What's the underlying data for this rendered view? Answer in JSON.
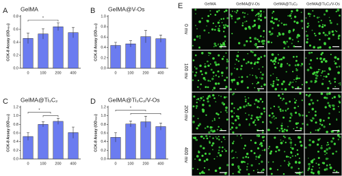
{
  "chart_data": [
    {
      "type": "bar",
      "panel": "A",
      "title": "GelMA",
      "y_label": "CCK-8 Assay (OD₄₅₀)",
      "categories": [
        "0",
        "100",
        "200",
        "400"
      ],
      "values": [
        0.46,
        0.53,
        0.64,
        0.55
      ],
      "errors": [
        0.08,
        0.08,
        0.06,
        0.08
      ],
      "color": "#6b7cf0",
      "ylim": [
        0,
        0.8
      ],
      "yticks": [
        {
          "value": 0,
          "label": "0.0"
        },
        {
          "value": 0.2,
          "label": "0.2"
        },
        {
          "value": 0.4,
          "label": "0.4"
        },
        {
          "value": 0.6,
          "label": "0.6"
        },
        {
          "value": 0.8,
          "label": "0.8"
        }
      ],
      "annotations": [
        "*"
      ]
    },
    {
      "type": "bar",
      "panel": "B",
      "title": "GelMA@V-Os",
      "y_label": "CCK-8 Assay (OD₄₅₀)",
      "categories": [
        "0",
        "100",
        "200",
        "400"
      ],
      "values": [
        0.44,
        0.47,
        0.61,
        0.57
      ],
      "errors": [
        0.06,
        0.06,
        0.12,
        0.07
      ],
      "color": "#6b7cf0",
      "ylim": [
        0,
        1.0
      ],
      "yticks": [
        {
          "value": 0,
          "label": "0.0"
        },
        {
          "value": 0.2,
          "label": "0.2"
        },
        {
          "value": 0.4,
          "label": "0.4"
        },
        {
          "value": 0.6,
          "label": "0.6"
        },
        {
          "value": 0.8,
          "label": "0.8"
        },
        {
          "value": 1,
          "label": "1.0"
        }
      ]
    },
    {
      "type": "bar",
      "panel": "C",
      "title": "GelMA@Ti₃C₂",
      "y_label": "CCK-8 Assay (OD₄₅₀)",
      "categories": [
        "0",
        "100",
        "200",
        "400"
      ],
      "values": [
        0.52,
        0.8,
        0.87,
        0.61
      ],
      "errors": [
        0.09,
        0.06,
        0.07,
        0.13
      ],
      "color": "#6b7cf0",
      "ylim": [
        0,
        1.2
      ],
      "yticks": [
        {
          "value": 0,
          "label": "0.0"
        },
        {
          "value": 0.2,
          "label": "0.2"
        },
        {
          "value": 0.4,
          "label": "0.4"
        },
        {
          "value": 0.6,
          "label": "0.6"
        },
        {
          "value": 0.8,
          "label": "0.8"
        },
        {
          "value": 1,
          "label": "1.0"
        },
        {
          "value": 1.2,
          "label": "1.2"
        }
      ],
      "annotations": [
        "*"
      ]
    },
    {
      "type": "bar",
      "panel": "D",
      "title": "GelMA@Ti₃C₂/V-Os",
      "y_label": "CCK-8 Assay (OD₄₅₀)",
      "categories": [
        "0",
        "100",
        "200",
        "400"
      ],
      "values": [
        0.5,
        0.81,
        0.86,
        0.75
      ],
      "errors": [
        0.11,
        0.07,
        0.13,
        0.08
      ],
      "color": "#6b7cf0",
      "ylim": [
        0,
        1.2
      ],
      "yticks": [
        {
          "value": 0,
          "label": "0.0"
        },
        {
          "value": 0.2,
          "label": "0.2"
        },
        {
          "value": 0.4,
          "label": "0.4"
        },
        {
          "value": 0.6,
          "label": "0.6"
        },
        {
          "value": 0.8,
          "label": "0.8"
        },
        {
          "value": 1,
          "label": "1.0"
        },
        {
          "value": 1.2,
          "label": "1.2"
        }
      ],
      "annotations": [
        "*"
      ]
    }
  ],
  "panel_e": {
    "label": "E",
    "columns": [
      "GelMA",
      "GelMA@V-Os",
      "GelMA@Ti₃C₂",
      "GelMA@Ti₃C₂/V-Os"
    ],
    "rows": [
      "0 mv",
      "100 mv",
      "200 mv",
      "400 mv"
    ]
  }
}
